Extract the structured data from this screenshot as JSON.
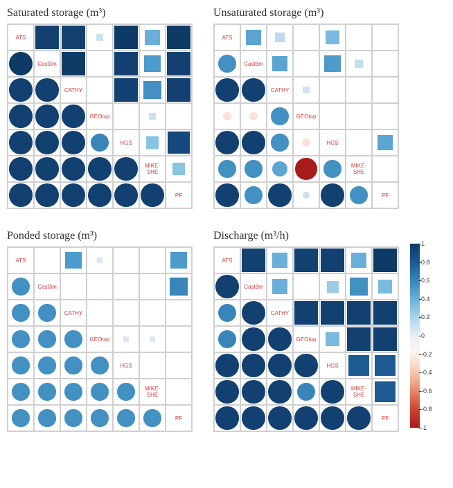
{
  "labels": [
    "ATS",
    "Cast3m",
    "CATHY",
    "GEOtop",
    "HGS",
    "MIKE-SHE",
    "PF"
  ],
  "label_color": "#d73939",
  "label_fontsize": 8,
  "grid_color": "#d0d0d0",
  "background": "#ffffff",
  "cell_size": 38,
  "colormap": {
    "stops": [
      "#0e3a66",
      "#1a538a",
      "#2b77ad",
      "#4d9bcb",
      "#7ebde0",
      "#b7d9ec",
      "#e6f0f5",
      "#fdf5f1",
      "#f9d6c7",
      "#f0a98d",
      "#df6f56",
      "#c73b2a",
      "#a81b1b"
    ],
    "domain": [
      1.0,
      0.833,
      0.667,
      0.5,
      0.333,
      0.167,
      0.0,
      -0.05,
      -0.167,
      -0.333,
      -0.5,
      -0.667,
      -0.833
    ]
  },
  "colorbar_ticks": [
    "1",
    "0.8",
    "0.6",
    "0.4",
    "0.2",
    "0",
    "-0.2",
    "-0.4",
    "-0.6",
    "-0.8",
    "-1"
  ],
  "panels": [
    {
      "title": "Saturated storage (m³)",
      "values": [
        [
          null,
          0.95,
          0.95,
          0.1,
          1.0,
          0.4,
          1.0
        ],
        [
          null,
          null,
          1.0,
          0.0,
          0.95,
          0.5,
          0.95
        ],
        [
          null,
          null,
          null,
          0.0,
          0.95,
          0.55,
          0.95
        ],
        [
          null,
          null,
          null,
          null,
          0.0,
          0.1,
          0.0
        ],
        [
          null,
          null,
          null,
          null,
          null,
          0.3,
          0.9
        ],
        [
          null,
          null,
          null,
          null,
          null,
          null,
          0.3
        ],
        [
          null,
          null,
          null,
          null,
          null,
          null,
          null
        ]
      ],
      "lower": [
        [
          null,
          null,
          null,
          null,
          null,
          null,
          null
        ],
        [
          1.0,
          null,
          null,
          null,
          null,
          null,
          null
        ],
        [
          0.95,
          0.95,
          null,
          null,
          null,
          null,
          null
        ],
        [
          0.95,
          0.95,
          0.95,
          null,
          null,
          null,
          null
        ],
        [
          0.95,
          0.95,
          0.95,
          0.6,
          null,
          null,
          null
        ],
        [
          0.95,
          0.95,
          0.95,
          0.95,
          0.95,
          null,
          null
        ],
        [
          0.95,
          0.95,
          0.95,
          0.95,
          0.95,
          0.95,
          null
        ]
      ]
    },
    {
      "title": "Unsaturated storage (m³)",
      "values": [
        [
          null,
          0.45,
          0.15,
          0.0,
          0.35,
          0.0,
          0.0
        ],
        [
          null,
          null,
          0.45,
          0.0,
          0.5,
          0.12,
          0.0
        ],
        [
          null,
          null,
          null,
          0.08,
          0.0,
          0.0,
          0.0
        ],
        [
          null,
          null,
          null,
          null,
          0.0,
          0.0,
          0.0
        ],
        [
          null,
          null,
          null,
          null,
          null,
          0.0,
          0.45
        ],
        [
          null,
          null,
          null,
          null,
          null,
          null,
          0.0
        ],
        [
          null,
          null,
          null,
          null,
          null,
          null,
          null
        ]
      ],
      "lower": [
        [
          null,
          null,
          null,
          null,
          null,
          null,
          null
        ],
        [
          0.55,
          null,
          null,
          null,
          null,
          null,
          null
        ],
        [
          0.95,
          0.95,
          null,
          null,
          null,
          null,
          null
        ],
        [
          -0.12,
          -0.12,
          0.55,
          null,
          null,
          null,
          null
        ],
        [
          0.95,
          0.95,
          0.55,
          -0.12,
          null,
          null,
          null
        ],
        [
          0.55,
          0.55,
          0.45,
          -0.85,
          0.55,
          null,
          null
        ],
        [
          0.95,
          0.55,
          0.95,
          0.1,
          0.95,
          0.55,
          null
        ]
      ]
    },
    {
      "title": "Ponded storage (m³)",
      "values": [
        [
          null,
          0.0,
          0.5,
          0.05,
          0.0,
          0.0,
          0.5
        ],
        [
          null,
          null,
          0.0,
          0.0,
          0.0,
          0.0,
          0.6
        ],
        [
          null,
          null,
          null,
          0.0,
          0.0,
          0.0,
          0.0
        ],
        [
          null,
          null,
          null,
          null,
          0.05,
          0.05,
          0.0
        ],
        [
          null,
          null,
          null,
          null,
          null,
          0.0,
          0.0
        ],
        [
          null,
          null,
          null,
          null,
          null,
          null,
          0.0
        ],
        [
          null,
          null,
          null,
          null,
          null,
          null,
          null
        ]
      ],
      "lower": [
        [
          null,
          null,
          null,
          null,
          null,
          null,
          null
        ],
        [
          0.55,
          null,
          null,
          null,
          null,
          null,
          null
        ],
        [
          0.55,
          0.55,
          null,
          null,
          null,
          null,
          null
        ],
        [
          0.55,
          0.55,
          0.55,
          null,
          null,
          null,
          null
        ],
        [
          0.55,
          0.55,
          0.55,
          0.55,
          null,
          null,
          null
        ],
        [
          0.55,
          0.55,
          0.55,
          0.55,
          0.55,
          null,
          null
        ],
        [
          0.55,
          0.55,
          0.55,
          0.55,
          0.55,
          0.55,
          null
        ]
      ]
    },
    {
      "title": "Discharge (m³/h)",
      "values": [
        [
          null,
          0.95,
          0.4,
          0.95,
          0.95,
          0.4,
          1.0
        ],
        [
          null,
          null,
          0.4,
          0.0,
          0.25,
          0.55,
          0.35
        ],
        [
          null,
          null,
          null,
          0.95,
          0.95,
          0.95,
          0.95
        ],
        [
          null,
          null,
          null,
          null,
          0.35,
          0.95,
          0.95
        ],
        [
          null,
          null,
          null,
          null,
          null,
          0.8,
          0.8
        ],
        [
          null,
          null,
          null,
          null,
          null,
          null,
          0.8
        ],
        [
          null,
          null,
          null,
          null,
          null,
          null,
          null
        ]
      ],
      "lower": [
        [
          null,
          null,
          null,
          null,
          null,
          null,
          null
        ],
        [
          0.95,
          null,
          null,
          null,
          null,
          null,
          null
        ],
        [
          0.6,
          0.95,
          null,
          null,
          null,
          null,
          null
        ],
        [
          0.6,
          0.95,
          0.95,
          null,
          null,
          null,
          null
        ],
        [
          0.95,
          0.95,
          0.95,
          0.95,
          null,
          null,
          null
        ],
        [
          0.95,
          0.95,
          0.95,
          0.6,
          0.95,
          null,
          null
        ],
        [
          0.95,
          0.95,
          0.95,
          0.95,
          0.95,
          0.95,
          null
        ]
      ]
    }
  ]
}
